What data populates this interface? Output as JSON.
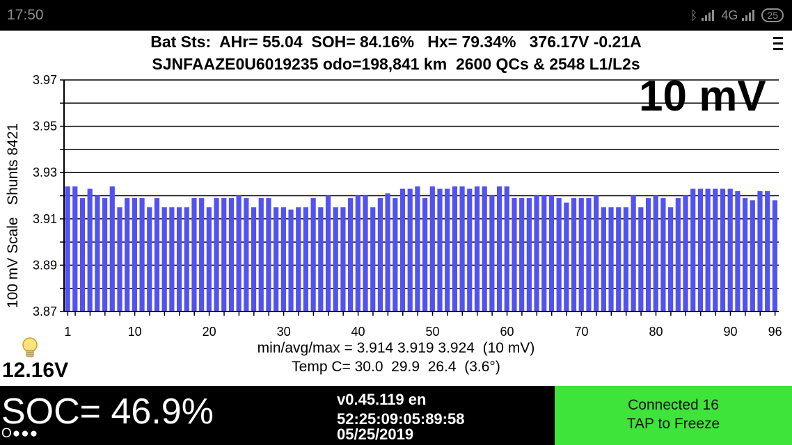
{
  "status_bar": {
    "time": "17:50",
    "network": "4G",
    "battery": "25"
  },
  "header": {
    "line1": "Bat Sts:  AHr= 55.04  SOH= 84.16%   Hx= 79.34%   376.17V -0.21A",
    "line2": "SJNFAAZE0U6019235 odo=198,841 km  2600 QCs & 2548 L1/L2s",
    "menu_icon": "menu-icon"
  },
  "scale_label": "10 mV",
  "y_axis_label": "100 mV Scale   Shunts 8421",
  "stats": {
    "minmax": "min/avg/max = 3.914 3.919 3.924  (10 mV)",
    "temp": "Temp C= 30.0  29.9  26.4  (3.6°)"
  },
  "aux_voltage": "12.16V",
  "soc": "SOC= 46.9%",
  "dots": "O●●●",
  "version": {
    "line1": "v0.45.119 en",
    "line2": "52:25:09:05:89:58",
    "line3": "05/25/2019"
  },
  "connection": {
    "line1": "Connected 16",
    "line2": "TAP to Freeze"
  },
  "colors": {
    "bar": "#5252f0",
    "panel": "#3ee43a",
    "status_text": "#8d8d8d"
  },
  "chart_data": {
    "type": "bar",
    "title": "",
    "xlabel": "",
    "ylabel": "100 mV Scale   Shunts 8421",
    "ylim": [
      3.87,
      3.97
    ],
    "yticks": [
      "3.97",
      "3.95",
      "3.93",
      "3.91",
      "3.89",
      "3.87"
    ],
    "xticks": [
      1,
      10,
      20,
      30,
      40,
      50,
      60,
      70,
      80,
      90,
      96
    ],
    "grid": true,
    "categories": [
      1,
      2,
      3,
      4,
      5,
      6,
      7,
      8,
      9,
      10,
      11,
      12,
      13,
      14,
      15,
      16,
      17,
      18,
      19,
      20,
      21,
      22,
      23,
      24,
      25,
      26,
      27,
      28,
      29,
      30,
      31,
      32,
      33,
      34,
      35,
      36,
      37,
      38,
      39,
      40,
      41,
      42,
      43,
      44,
      45,
      46,
      47,
      48,
      49,
      50,
      51,
      52,
      53,
      54,
      55,
      56,
      57,
      58,
      59,
      60,
      61,
      62,
      63,
      64,
      65,
      66,
      67,
      68,
      69,
      70,
      71,
      72,
      73,
      74,
      75,
      76,
      77,
      78,
      79,
      80,
      81,
      82,
      83,
      84,
      85,
      86,
      87,
      88,
      89,
      90,
      91,
      92,
      93,
      94,
      95,
      96
    ],
    "values": [
      3.924,
      3.924,
      3.919,
      3.923,
      3.92,
      3.919,
      3.924,
      3.915,
      3.919,
      3.919,
      3.919,
      3.915,
      3.919,
      3.915,
      3.915,
      3.915,
      3.915,
      3.919,
      3.919,
      3.915,
      3.919,
      3.919,
      3.919,
      3.92,
      3.919,
      3.915,
      3.919,
      3.919,
      3.915,
      3.915,
      3.914,
      3.915,
      3.915,
      3.919,
      3.915,
      3.92,
      3.915,
      3.915,
      3.919,
      3.92,
      3.92,
      3.915,
      3.919,
      3.921,
      3.919,
      3.923,
      3.923,
      3.924,
      3.919,
      3.924,
      3.923,
      3.923,
      3.924,
      3.924,
      3.923,
      3.924,
      3.924,
      3.92,
      3.924,
      3.924,
      3.919,
      3.919,
      3.919,
      3.92,
      3.92,
      3.92,
      3.919,
      3.917,
      3.919,
      3.919,
      3.919,
      3.92,
      3.915,
      3.915,
      3.915,
      3.915,
      3.92,
      3.915,
      3.919,
      3.92,
      3.919,
      3.915,
      3.919,
      3.92,
      3.923,
      3.923,
      3.923,
      3.923,
      3.923,
      3.923,
      3.922,
      3.919,
      3.918,
      3.922,
      3.922,
      3.918
    ]
  }
}
